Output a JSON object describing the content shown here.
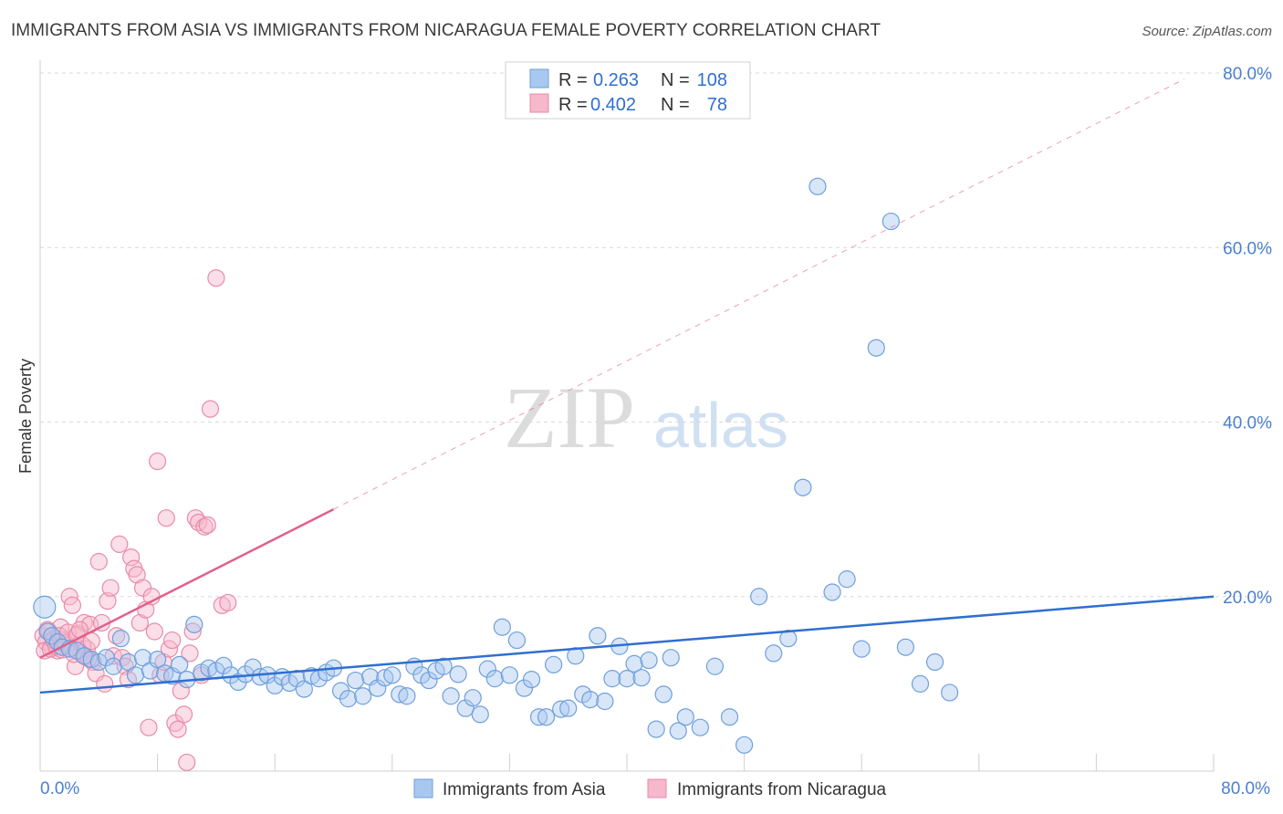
{
  "header": {
    "title": "IMMIGRANTS FROM ASIA VS IMMIGRANTS FROM NICARAGUA FEMALE POVERTY CORRELATION CHART",
    "source": "Source: ZipAtlas.com"
  },
  "watermark": {
    "zip": "ZIP",
    "atlas": "atlas"
  },
  "colors": {
    "asia_fill": "#a9c8f0",
    "asia_stroke": "#6f9fdc",
    "asia_line": "#2f6fd0",
    "nicaragua_fill": "#f6b8cb",
    "nicaragua_stroke": "#e98aa8",
    "nicaragua_line": "#e0608a",
    "grid": "#d9d9d9",
    "tick_text": "#4a7fd0"
  },
  "stats_legend": {
    "rows": [
      {
        "r_label": "R =",
        "r_value": "0.263",
        "n_label": "N =",
        "n_value": "108"
      },
      {
        "r_label": "R =",
        "r_value": "0.402",
        "n_label": "N =",
        "n_value": "78"
      }
    ]
  },
  "bottom_legend": {
    "items": [
      "Immigrants from Asia",
      "Immigrants from Nicaragua"
    ]
  },
  "chart_data": {
    "type": "scatter",
    "title": "IMMIGRANTS FROM ASIA VS IMMIGRANTS FROM NICARAGUA FEMALE POVERTY CORRELATION CHART",
    "xlabel": "",
    "ylabel": "Female Poverty",
    "xlim": [
      0,
      80
    ],
    "ylim": [
      0,
      80
    ],
    "x_tick_labels": [
      "0.0%",
      "80.0%"
    ],
    "y_ticks": [
      {
        "value": 20,
        "label": "20.0%"
      },
      {
        "value": 40,
        "label": "40.0%"
      },
      {
        "value": 60,
        "label": "60.0%"
      },
      {
        "value": 80,
        "label": "80.0%"
      }
    ],
    "grid": true,
    "legend_position": "top-center",
    "series": [
      {
        "name": "Immigrants from Asia",
        "r": "0.263",
        "n": "108",
        "trend": {
          "x": [
            0,
            80
          ],
          "y": [
            9.0,
            20.0
          ]
        },
        "points": [
          [
            0.3,
            18.8
          ],
          [
            0.5,
            16.0
          ],
          [
            0.8,
            15.5
          ],
          [
            1.2,
            14.8
          ],
          [
            1.5,
            14.2
          ],
          [
            2.0,
            14.0
          ],
          [
            2.5,
            13.8
          ],
          [
            3.0,
            13.2
          ],
          [
            3.5,
            12.8
          ],
          [
            4.0,
            12.5
          ],
          [
            4.5,
            13.0
          ],
          [
            5.0,
            12.0
          ],
          [
            5.5,
            15.2
          ],
          [
            6.0,
            12.5
          ],
          [
            6.5,
            11.0
          ],
          [
            7.0,
            13.0
          ],
          [
            7.5,
            11.5
          ],
          [
            8.0,
            12.8
          ],
          [
            8.5,
            11.2
          ],
          [
            9.0,
            10.9
          ],
          [
            9.5,
            12.2
          ],
          [
            10.0,
            10.5
          ],
          [
            10.5,
            16.8
          ],
          [
            11.0,
            11.3
          ],
          [
            11.5,
            11.8
          ],
          [
            12.0,
            11.5
          ],
          [
            12.5,
            12.1
          ],
          [
            13.0,
            11.0
          ],
          [
            13.5,
            10.2
          ],
          [
            14.0,
            11.1
          ],
          [
            14.5,
            11.9
          ],
          [
            15.0,
            10.8
          ],
          [
            15.5,
            11.0
          ],
          [
            16.0,
            9.8
          ],
          [
            16.5,
            10.8
          ],
          [
            17.0,
            10.1
          ],
          [
            17.5,
            10.6
          ],
          [
            18.0,
            9.4
          ],
          [
            18.5,
            10.9
          ],
          [
            19.0,
            10.6
          ],
          [
            19.5,
            11.3
          ],
          [
            20.0,
            11.8
          ],
          [
            20.5,
            9.2
          ],
          [
            21.0,
            8.3
          ],
          [
            21.5,
            10.4
          ],
          [
            22.0,
            8.6
          ],
          [
            22.5,
            10.8
          ],
          [
            23.0,
            9.5
          ],
          [
            23.5,
            10.7
          ],
          [
            24.0,
            11.0
          ],
          [
            24.5,
            8.8
          ],
          [
            25.0,
            8.6
          ],
          [
            25.5,
            12.0
          ],
          [
            26.0,
            11.0
          ],
          [
            26.5,
            10.4
          ],
          [
            27.0,
            11.5
          ],
          [
            27.5,
            12.0
          ],
          [
            28.0,
            8.6
          ],
          [
            28.5,
            11.1
          ],
          [
            29.0,
            7.2
          ],
          [
            29.5,
            8.4
          ],
          [
            30.0,
            6.5
          ],
          [
            30.5,
            11.7
          ],
          [
            31.0,
            10.6
          ],
          [
            31.5,
            16.5
          ],
          [
            32.0,
            11.0
          ],
          [
            32.5,
            15.0
          ],
          [
            33.0,
            9.5
          ],
          [
            33.5,
            10.5
          ],
          [
            34.0,
            6.2
          ],
          [
            34.5,
            6.2
          ],
          [
            35.0,
            12.2
          ],
          [
            35.5,
            7.1
          ],
          [
            36.0,
            7.2
          ],
          [
            36.5,
            13.2
          ],
          [
            37.0,
            8.8
          ],
          [
            37.5,
            8.2
          ],
          [
            38.0,
            15.5
          ],
          [
            38.5,
            8.0
          ],
          [
            39.0,
            10.6
          ],
          [
            39.5,
            14.3
          ],
          [
            40.0,
            10.6
          ],
          [
            40.5,
            12.3
          ],
          [
            41.0,
            10.7
          ],
          [
            41.5,
            12.7
          ],
          [
            42.0,
            4.8
          ],
          [
            42.5,
            8.8
          ],
          [
            43.0,
            13.0
          ],
          [
            43.5,
            4.6
          ],
          [
            44.0,
            6.2
          ],
          [
            45.0,
            5.0
          ],
          [
            46.0,
            12.0
          ],
          [
            47.0,
            6.2
          ],
          [
            48.0,
            3.0
          ],
          [
            49.0,
            20.0
          ],
          [
            50.0,
            13.5
          ],
          [
            51.0,
            15.2
          ],
          [
            52.0,
            32.5
          ],
          [
            53.0,
            67.0
          ],
          [
            54.0,
            20.5
          ],
          [
            55.0,
            22.0
          ],
          [
            56.0,
            14.0
          ],
          [
            57.0,
            48.5
          ],
          [
            58.0,
            63.0
          ],
          [
            59.0,
            14.2
          ],
          [
            60.0,
            10.0
          ],
          [
            61.0,
            12.5
          ],
          [
            62.0,
            9.0
          ]
        ]
      },
      {
        "name": "Immigrants from Nicaragua",
        "r": "0.402",
        "n": "78",
        "trend": {
          "x": [
            0,
            20
          ],
          "y": [
            13.0,
            30.0
          ]
        },
        "points": [
          [
            0.2,
            15.5
          ],
          [
            0.4,
            14.8
          ],
          [
            0.6,
            16.0
          ],
          [
            0.8,
            14.2
          ],
          [
            1.0,
            15.2
          ],
          [
            1.2,
            13.8
          ],
          [
            1.4,
            16.5
          ],
          [
            1.6,
            15.0
          ],
          [
            1.8,
            14.5
          ],
          [
            2.0,
            20.0
          ],
          [
            2.2,
            19.0
          ],
          [
            2.4,
            12.0
          ],
          [
            2.6,
            15.8
          ],
          [
            2.8,
            13.5
          ],
          [
            3.0,
            17.0
          ],
          [
            3.2,
            14.0
          ],
          [
            3.4,
            16.8
          ],
          [
            3.6,
            12.5
          ],
          [
            3.8,
            11.2
          ],
          [
            4.0,
            24.0
          ],
          [
            4.2,
            17.0
          ],
          [
            4.4,
            10.0
          ],
          [
            4.6,
            19.5
          ],
          [
            4.8,
            21.0
          ],
          [
            5.0,
            13.2
          ],
          [
            5.2,
            15.5
          ],
          [
            5.4,
            26.0
          ],
          [
            5.6,
            13.0
          ],
          [
            5.8,
            12.0
          ],
          [
            6.0,
            10.5
          ],
          [
            6.2,
            24.5
          ],
          [
            6.4,
            23.2
          ],
          [
            6.6,
            22.5
          ],
          [
            6.8,
            17.0
          ],
          [
            7.0,
            21.0
          ],
          [
            7.2,
            18.5
          ],
          [
            7.4,
            5.0
          ],
          [
            7.6,
            20.0
          ],
          [
            7.8,
            16.0
          ],
          [
            8.0,
            35.5
          ],
          [
            8.2,
            11.0
          ],
          [
            8.4,
            12.5
          ],
          [
            8.6,
            29.0
          ],
          [
            8.8,
            14.0
          ],
          [
            9.0,
            15.0
          ],
          [
            9.2,
            5.5
          ],
          [
            9.4,
            4.8
          ],
          [
            9.6,
            9.2
          ],
          [
            9.8,
            6.5
          ],
          [
            10.0,
            1.0
          ],
          [
            10.2,
            13.5
          ],
          [
            10.4,
            16.0
          ],
          [
            10.6,
            29.0
          ],
          [
            10.8,
            28.5
          ],
          [
            11.0,
            11.0
          ],
          [
            11.2,
            28.0
          ],
          [
            11.4,
            28.2
          ],
          [
            11.6,
            41.5
          ],
          [
            12.0,
            56.5
          ],
          [
            12.4,
            19.0
          ],
          [
            12.8,
            19.3
          ],
          [
            0.3,
            13.8
          ],
          [
            0.5,
            16.2
          ],
          [
            0.7,
            14.0
          ],
          [
            0.9,
            15.0
          ],
          [
            1.1,
            14.3
          ],
          [
            1.3,
            15.5
          ],
          [
            1.5,
            13.9
          ],
          [
            1.7,
            14.7
          ],
          [
            1.9,
            15.9
          ],
          [
            2.1,
            14.1
          ],
          [
            2.3,
            13.4
          ],
          [
            2.5,
            15.6
          ],
          [
            2.7,
            16.2
          ],
          [
            2.9,
            14.4
          ],
          [
            3.1,
            13.1
          ],
          [
            3.3,
            12.9
          ],
          [
            3.5,
            14.9
          ]
        ]
      }
    ]
  }
}
